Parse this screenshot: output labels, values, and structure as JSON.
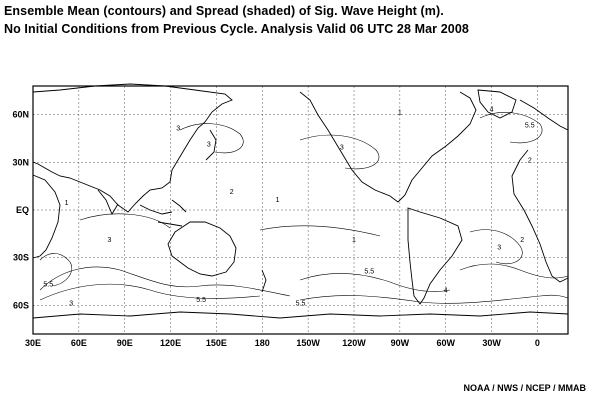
{
  "title_line1": "Ensemble Mean (contours) and Spread (shaded) of Sig. Wave  Height (m).",
  "title_line2": "No Initial Conditions from Previous Cycle. Analysis Valid 06 UTC  28 Mar 2008",
  "credit": "NOAA / NWS / NCEP / MMAB",
  "map": {
    "lon_labels": [
      {
        "lon": 30,
        "text": "30E"
      },
      {
        "lon": 60,
        "text": "60E"
      },
      {
        "lon": 90,
        "text": "90E"
      },
      {
        "lon": 120,
        "text": "120E"
      },
      {
        "lon": 150,
        "text": "150E"
      },
      {
        "lon": 180,
        "text": "180"
      },
      {
        "lon": 210,
        "text": "150W"
      },
      {
        "lon": 240,
        "text": "120W"
      },
      {
        "lon": 270,
        "text": "90W"
      },
      {
        "lon": 300,
        "text": "60W"
      },
      {
        "lon": 330,
        "text": "30W"
      },
      {
        "lon": 360,
        "text": "0"
      }
    ],
    "lat_labels": [
      {
        "lat": 60,
        "text": "60N"
      },
      {
        "lat": 30,
        "text": "30N"
      },
      {
        "lat": 0,
        "text": "EQ"
      },
      {
        "lat": -30,
        "text": "30S"
      },
      {
        "lat": -60,
        "text": "60S"
      }
    ],
    "lon_range": [
      30,
      380
    ],
    "lat_range": [
      -78,
      78
    ],
    "contour_labels": [
      {
        "lon": 52,
        "lat": 3,
        "text": "1"
      },
      {
        "lon": 80,
        "lat": -20,
        "text": "3"
      },
      {
        "lon": 40,
        "lat": -48,
        "text": "5.5"
      },
      {
        "lon": 55,
        "lat": -60,
        "text": "3"
      },
      {
        "lon": 125,
        "lat": 50,
        "text": "3"
      },
      {
        "lon": 145,
        "lat": 40,
        "text": "3"
      },
      {
        "lon": 160,
        "lat": 10,
        "text": "2"
      },
      {
        "lon": 190,
        "lat": 5,
        "text": "1"
      },
      {
        "lon": 232,
        "lat": 38,
        "text": "3"
      },
      {
        "lon": 270,
        "lat": 60,
        "text": "1"
      },
      {
        "lon": 240,
        "lat": -20,
        "text": "1"
      },
      {
        "lon": 250,
        "lat": -40,
        "text": "5.5"
      },
      {
        "lon": 205,
        "lat": -60,
        "text": "5.5"
      },
      {
        "lon": 140,
        "lat": -58,
        "text": "5.5"
      },
      {
        "lon": 335,
        "lat": -25,
        "text": "3"
      },
      {
        "lon": 350,
        "lat": -20,
        "text": "2"
      },
      {
        "lon": 330,
        "lat": 62,
        "text": "4"
      },
      {
        "lon": 355,
        "lat": 52,
        "text": "5.5"
      },
      {
        "lon": 355,
        "lat": 30,
        "text": "2"
      },
      {
        "lon": 300,
        "lat": -52,
        "text": "4"
      }
    ]
  }
}
